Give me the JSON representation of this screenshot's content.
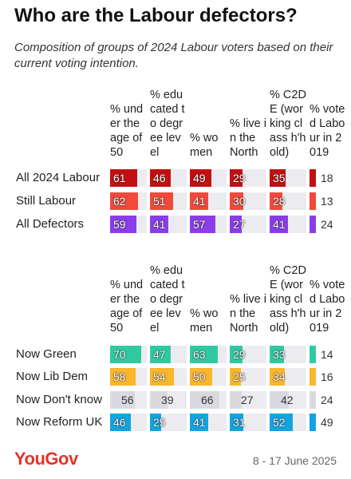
{
  "title": "Who are the Labour defectors?",
  "subtitle": "Composition of groups of 2024 Labour voters based on their current voting intention.",
  "footer": {
    "logo": "YouGov",
    "date": "8 - 17 June 2025"
  },
  "chart_data": [
    {
      "type": "bar-table",
      "categories": [
        "% under the age of 50",
        "% educated to degree level",
        "% women",
        "% live in the North",
        "% C2DE (working class h'hold)",
        "% voted Labour in 2019"
      ],
      "xlim": [
        0,
        100
      ],
      "series": [
        {
          "name": "All 2024 Labour",
          "color": "#c40f12",
          "values": [
            61,
            46,
            49,
            29,
            35,
            18
          ]
        },
        {
          "name": "Still Labour",
          "color": "#f2493b",
          "values": [
            62,
            51,
            41,
            30,
            28,
            13
          ]
        },
        {
          "name": "All Defectors",
          "color": "#8b3de9",
          "values": [
            59,
            41,
            57,
            27,
            41,
            24
          ]
        }
      ]
    },
    {
      "type": "bar-table",
      "categories": [
        "% under the age of 50",
        "% educated to degree level",
        "% women",
        "% live in the North",
        "% C2DE (working class h'hold)",
        "% voted Labour in 2019"
      ],
      "xlim": [
        0,
        100
      ],
      "series": [
        {
          "name": "Now Green",
          "color": "#2fcaa2",
          "values": [
            70,
            47,
            63,
            29,
            33,
            14
          ]
        },
        {
          "name": "Now Lib Dem",
          "color": "#fbb62b",
          "values": [
            58,
            54,
            50,
            25,
            34,
            16
          ]
        },
        {
          "name": "Now Don't know",
          "color": "#d9d9e0",
          "values": [
            56,
            39,
            66,
            27,
            42,
            24
          ]
        },
        {
          "name": "Now Reform UK",
          "color": "#12a4e1",
          "values": [
            46,
            25,
            41,
            31,
            52,
            49
          ]
        }
      ]
    }
  ]
}
